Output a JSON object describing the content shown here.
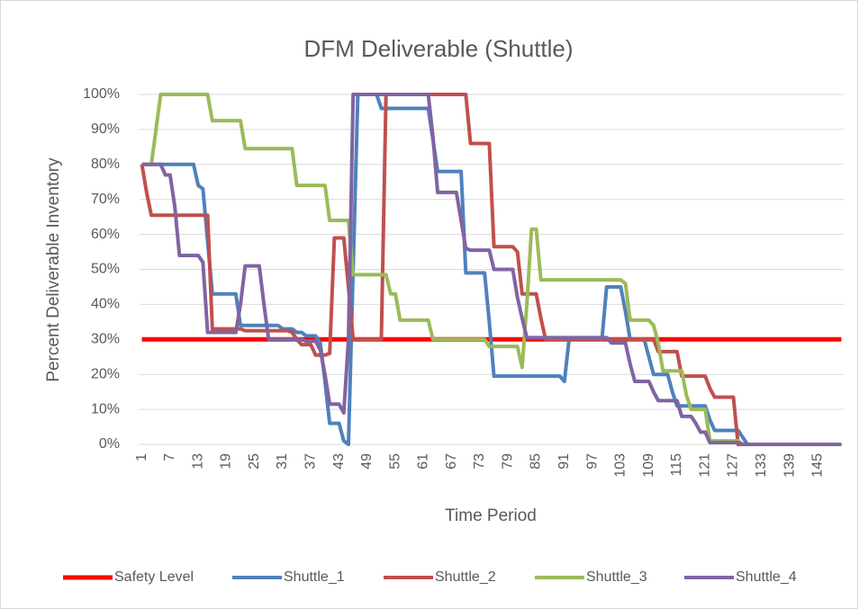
{
  "chart_data": {
    "type": "line",
    "title": "DFM Deliverable (Shuttle)",
    "x_label": "Time Period",
    "y_label": "Percent Deliverable Inventory",
    "categories": [
      "1",
      null,
      null,
      null,
      null,
      null,
      "7",
      null,
      null,
      null,
      null,
      null,
      "13",
      null,
      null,
      null,
      null,
      null,
      "19",
      null,
      null,
      null,
      null,
      null,
      "25",
      null,
      null,
      null,
      null,
      null,
      "31",
      null,
      null,
      null,
      null,
      null,
      "37",
      null,
      null,
      null,
      null,
      null,
      "43",
      null,
      null,
      null,
      null,
      null,
      "49",
      null,
      null,
      null,
      null,
      null,
      "55",
      null,
      null,
      null,
      null,
      null,
      "61",
      null,
      null,
      null,
      null,
      null,
      "67",
      null,
      null,
      null,
      null,
      null,
      "73",
      null,
      null,
      null,
      null,
      null,
      "79",
      null,
      null,
      null,
      null,
      null,
      "85",
      null,
      null,
      null,
      null,
      null,
      "91",
      null,
      null,
      null,
      null,
      null,
      "97",
      null,
      null,
      null,
      null,
      null,
      "103",
      null,
      null,
      null,
      null,
      null,
      "109",
      null,
      null,
      null,
      null,
      null,
      "115",
      null,
      null,
      null,
      null,
      null,
      "121",
      null,
      null,
      null,
      null,
      null,
      "127",
      null,
      null,
      null,
      null,
      null,
      "133",
      null,
      null,
      null,
      null,
      null,
      "139",
      null,
      null,
      null,
      null,
      null,
      "145",
      null,
      null,
      null,
      null,
      null
    ],
    "series": [
      {
        "name": "Safety Level",
        "color": "#ff0000",
        "values": [
          30,
          30,
          30,
          30,
          30,
          30,
          30,
          30,
          30,
          30,
          30,
          30,
          30,
          30,
          30,
          30,
          30,
          30,
          30,
          30,
          30,
          30,
          30,
          30,
          30,
          30,
          30,
          30,
          30,
          30,
          30,
          30,
          30,
          30,
          30,
          30,
          30,
          30,
          30,
          30,
          30,
          30,
          30,
          30,
          30,
          30,
          30,
          30,
          30,
          30,
          30,
          30,
          30,
          30,
          30,
          30,
          30,
          30,
          30,
          30,
          30,
          30,
          30,
          30,
          30,
          30,
          30,
          30,
          30,
          30,
          30,
          30,
          30,
          30,
          30,
          30,
          30,
          30,
          30,
          30,
          30,
          30,
          30,
          30,
          30,
          30,
          30,
          30,
          30,
          30,
          30,
          30,
          30,
          30,
          30,
          30,
          30,
          30,
          30,
          30,
          30,
          30,
          30,
          30,
          30,
          30,
          30,
          30,
          30,
          30,
          30,
          30,
          30,
          30,
          30,
          30,
          30,
          30,
          30,
          30,
          30,
          30,
          30,
          30,
          30,
          30,
          30,
          30,
          30,
          30,
          30,
          30,
          30,
          30,
          30,
          30,
          30,
          30,
          30,
          30,
          30,
          30,
          30,
          30,
          30,
          30,
          30,
          30,
          30,
          30
        ]
      },
      {
        "name": "Shuttle_1",
        "color": "#4f81bd",
        "values": [
          80,
          80,
          80,
          80,
          80,
          80,
          80,
          80,
          80,
          80,
          80,
          80,
          74,
          73,
          58,
          43,
          43,
          43,
          43,
          43,
          43,
          34,
          34,
          34,
          34,
          34,
          34,
          34,
          34,
          34,
          33,
          33,
          33,
          32,
          32,
          31,
          31,
          31,
          29,
          18,
          6,
          6,
          6,
          1,
          0,
          50,
          100,
          100,
          100,
          100,
          100,
          96,
          96,
          96,
          96,
          96,
          96,
          96,
          96,
          96,
          96,
          96,
          87,
          78,
          78,
          78,
          78,
          78,
          78,
          49,
          49,
          49,
          49,
          49,
          35,
          19.5,
          19.5,
          19.5,
          19.5,
          19.5,
          19.5,
          19.5,
          19.5,
          19.5,
          19.5,
          19.5,
          19.5,
          19.5,
          19.5,
          19.5,
          18,
          30,
          30,
          30,
          30,
          30,
          30,
          30,
          30,
          45,
          45,
          45,
          45,
          38,
          30,
          30,
          30,
          30,
          25,
          20,
          20,
          20,
          20,
          15,
          11,
          11,
          11,
          11,
          11,
          11,
          11,
          7,
          4,
          4,
          4,
          4,
          4,
          4,
          2,
          0,
          0,
          0,
          0,
          0,
          0,
          0,
          0,
          0,
          0,
          0,
          0,
          0,
          0,
          0,
          0,
          0,
          0,
          0,
          0,
          0
        ]
      },
      {
        "name": "Shuttle_2",
        "color": "#c0504d",
        "values": [
          80,
          72,
          65.5,
          65.5,
          65.5,
          65.5,
          65.5,
          65.5,
          65.5,
          65.5,
          65.5,
          65.5,
          65.5,
          65.5,
          65.5,
          33,
          33,
          33,
          33,
          33,
          33,
          33,
          32.5,
          32.5,
          32.5,
          32.5,
          32.5,
          32.5,
          32.5,
          32.5,
          32.5,
          32.5,
          32,
          30,
          28.5,
          28.5,
          28.5,
          25.5,
          25.5,
          25.5,
          26,
          59,
          59,
          59,
          45,
          30,
          30,
          30,
          30,
          30,
          30,
          30,
          100,
          100,
          100,
          100,
          100,
          100,
          100,
          100,
          100,
          100,
          100,
          100,
          100,
          100,
          100,
          100,
          100,
          100,
          86,
          86,
          86,
          86,
          86,
          56.5,
          56.5,
          56.5,
          56.5,
          56.5,
          55,
          43,
          43,
          43,
          43,
          36,
          30,
          30,
          30,
          30,
          30,
          30,
          30,
          30,
          30,
          30,
          30,
          30,
          30,
          30,
          30,
          30,
          30,
          30,
          30,
          30,
          30,
          30,
          30,
          30,
          26.5,
          26.5,
          26.5,
          26.5,
          26.5,
          19.5,
          19.5,
          19.5,
          19.5,
          19.5,
          19.5,
          16,
          13.5,
          13.5,
          13.5,
          13.5,
          13.5,
          0,
          0,
          0,
          0,
          0,
          0,
          0,
          0,
          0,
          0,
          0,
          0,
          0,
          0,
          0,
          0,
          0,
          0,
          0,
          0,
          0,
          0,
          0
        ]
      },
      {
        "name": "Shuttle_3",
        "color": "#9bbb59",
        "values": [
          80,
          80,
          80,
          90,
          100,
          100,
          100,
          100,
          100,
          100,
          100,
          100,
          100,
          100,
          100,
          92.5,
          92.5,
          92.5,
          92.5,
          92.5,
          92.5,
          92.5,
          84.5,
          84.5,
          84.5,
          84.5,
          84.5,
          84.5,
          84.5,
          84.5,
          84.5,
          84.5,
          84.5,
          74,
          74,
          74,
          74,
          74,
          74,
          74,
          64,
          64,
          64,
          64,
          64,
          48.5,
          48.5,
          48.5,
          48.5,
          48.5,
          48.5,
          48.5,
          48.5,
          43,
          43,
          35.5,
          35.5,
          35.5,
          35.5,
          35.5,
          35.5,
          35.5,
          30,
          30,
          30,
          30,
          30,
          30,
          30,
          30,
          30,
          30,
          30,
          30,
          28,
          28,
          28,
          28,
          28,
          28,
          28,
          22,
          40,
          61.5,
          61.5,
          47,
          47,
          47,
          47,
          47,
          47,
          47,
          47,
          47,
          47,
          47,
          47,
          47,
          47,
          47,
          47,
          47,
          47,
          46,
          35.5,
          35.5,
          35.5,
          35.5,
          35.5,
          34,
          29,
          21,
          21,
          21,
          21,
          21,
          14,
          10,
          10,
          10,
          10,
          1,
          1,
          1,
          1,
          1,
          1,
          1,
          0,
          0,
          0,
          0,
          0,
          0,
          0,
          0,
          0,
          0,
          0,
          0,
          0,
          0,
          0,
          0,
          0,
          0,
          0,
          0,
          0,
          0
        ]
      },
      {
        "name": "Shuttle_4",
        "color": "#8064a2",
        "values": [
          80,
          80,
          80,
          80,
          80,
          77,
          77,
          68,
          54,
          54,
          54,
          54,
          54,
          52,
          32,
          32,
          32,
          32,
          32,
          32,
          32,
          40,
          51,
          51,
          51,
          51,
          40,
          30,
          30,
          30,
          30,
          30,
          30,
          30,
          30,
          29.5,
          29.5,
          29.5,
          27,
          20,
          11.5,
          11.5,
          11.5,
          9,
          30,
          100,
          100,
          100,
          100,
          100,
          100,
          100,
          100,
          100,
          100,
          100,
          100,
          100,
          100,
          100,
          100,
          100,
          88,
          72,
          72,
          72,
          72,
          72,
          64,
          56,
          55.5,
          55.5,
          55.5,
          55.5,
          55.5,
          50,
          50,
          50,
          50,
          50,
          42,
          36,
          30.5,
          30.5,
          30.5,
          30.5,
          30.5,
          30.5,
          30.5,
          30.5,
          30.5,
          30.5,
          30.5,
          30.5,
          30.5,
          30.5,
          30.5,
          30.5,
          30.5,
          30.5,
          29,
          29,
          29,
          29,
          23,
          18,
          18,
          18,
          18,
          15,
          12.5,
          12.5,
          12.5,
          12.5,
          12.5,
          8,
          8,
          8,
          6,
          3.5,
          3.5,
          0.5,
          0.5,
          0.5,
          0.5,
          0.5,
          0.5,
          0.5,
          0,
          0,
          0,
          0,
          0,
          0,
          0,
          0,
          0,
          0,
          0,
          0,
          0,
          0,
          0,
          0,
          0,
          0,
          0,
          0,
          0,
          0
        ]
      }
    ],
    "ylim": [
      0,
      100
    ],
    "yticks": [
      {
        "value": 0,
        "label": "0%"
      },
      {
        "value": 10,
        "label": "10%"
      },
      {
        "value": 20,
        "label": "20%"
      },
      {
        "value": 30,
        "label": "30%"
      },
      {
        "value": 40,
        "label": "40%"
      },
      {
        "value": 50,
        "label": "50%"
      },
      {
        "value": 60,
        "label": "60%"
      },
      {
        "value": 70,
        "label": "70%"
      },
      {
        "value": 80,
        "label": "80%"
      },
      {
        "value": 90,
        "label": "90%"
      },
      {
        "value": 100,
        "label": "100%"
      }
    ],
    "grid": true,
    "legend": "bottom"
  }
}
